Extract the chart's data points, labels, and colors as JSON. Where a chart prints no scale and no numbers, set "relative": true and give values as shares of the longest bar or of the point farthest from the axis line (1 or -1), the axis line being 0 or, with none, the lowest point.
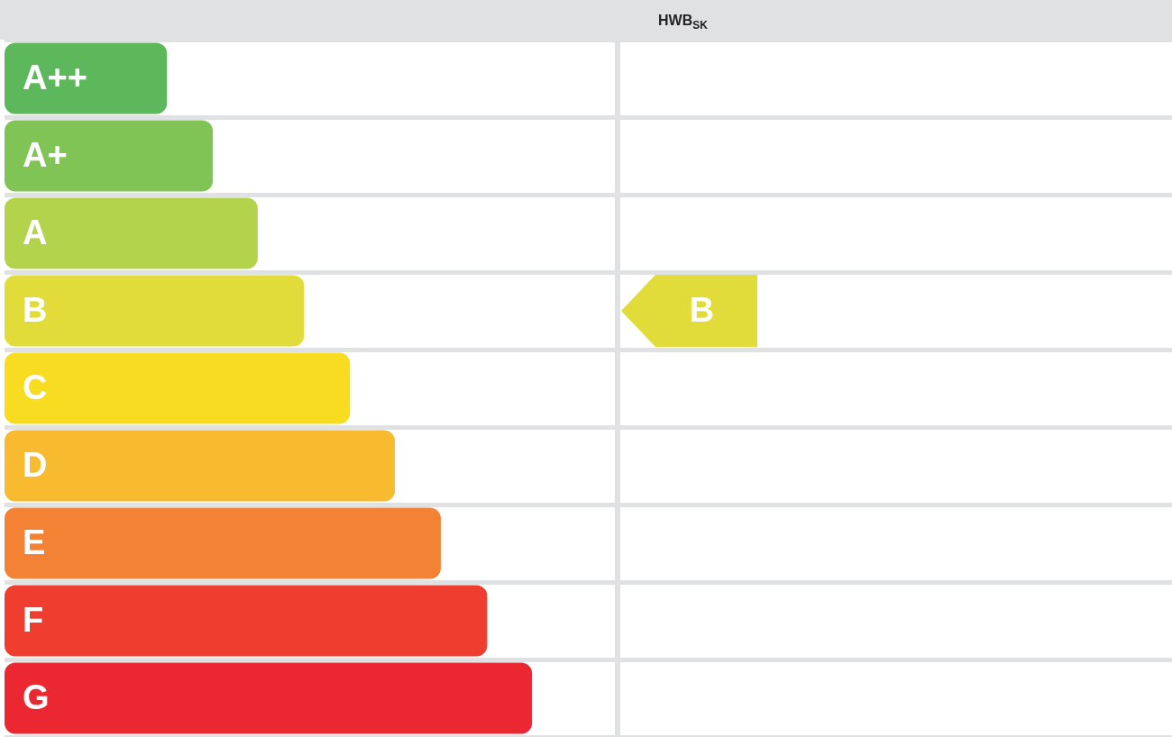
{
  "chart_data": {
    "type": "bar",
    "orientation": "horizontal",
    "relative": true,
    "title": "HWB$_{SK}$",
    "categories": [
      "A++",
      "A+",
      "A",
      "B",
      "C",
      "D",
      "E",
      "F",
      "G"
    ],
    "values": [
      0.308,
      0.395,
      0.48,
      0.568,
      0.655,
      0.74,
      0.827,
      0.915,
      1
    ],
    "colors": [
      "#5cb85a",
      "#80c456",
      "#b3d34c",
      "#e2dc3a",
      "#f8dc22",
      "#f8ba2e",
      "#f48234",
      "#ef3e2f",
      "#eb2831"
    ],
    "grid": "y",
    "legend": false,
    "annotations": [
      "B"
    ]
  }
}
